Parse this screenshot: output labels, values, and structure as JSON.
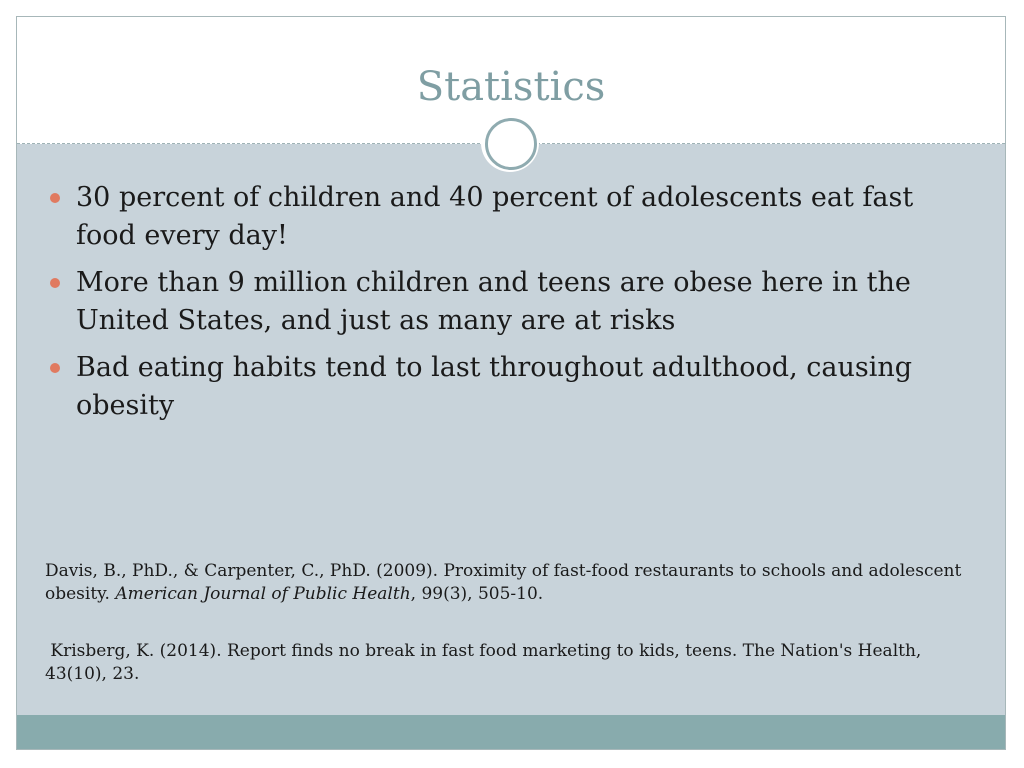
{
  "slide": {
    "title": "Statistics",
    "bullets": [
      "30 percent of children and 40 percent of adolescents eat fast food every day!",
      "More than 9 million children and teens are obese here in the United States, and just as many are at risks",
      "Bad eating habits tend to last throughout adulthood, causing obesity"
    ],
    "references": [
      {
        "part1": "Davis, B., PhD., & Carpenter, C., PhD. (2009). Proximity of fast-food restaurants to schools and adolescent obesity. ",
        "journal": "American Journal of Public Health",
        "part2": ", 99(3), 505-10."
      },
      {
        "text": " Krisberg, K. (2014). Report finds no break in fast food marketing to kids, teens. The Nation's Health, 43(10), 23."
      }
    ]
  },
  "colors": {
    "title": "#7f9ea3",
    "content_background": "#c8d3da",
    "bullet": "#e07a60",
    "footer_bar": "#88abad",
    "circle_ring": "#8fabb0"
  },
  "icons": {
    "divider_ornament": "circle-ring-icon",
    "bullet_marker": "bullet-dot-icon"
  }
}
